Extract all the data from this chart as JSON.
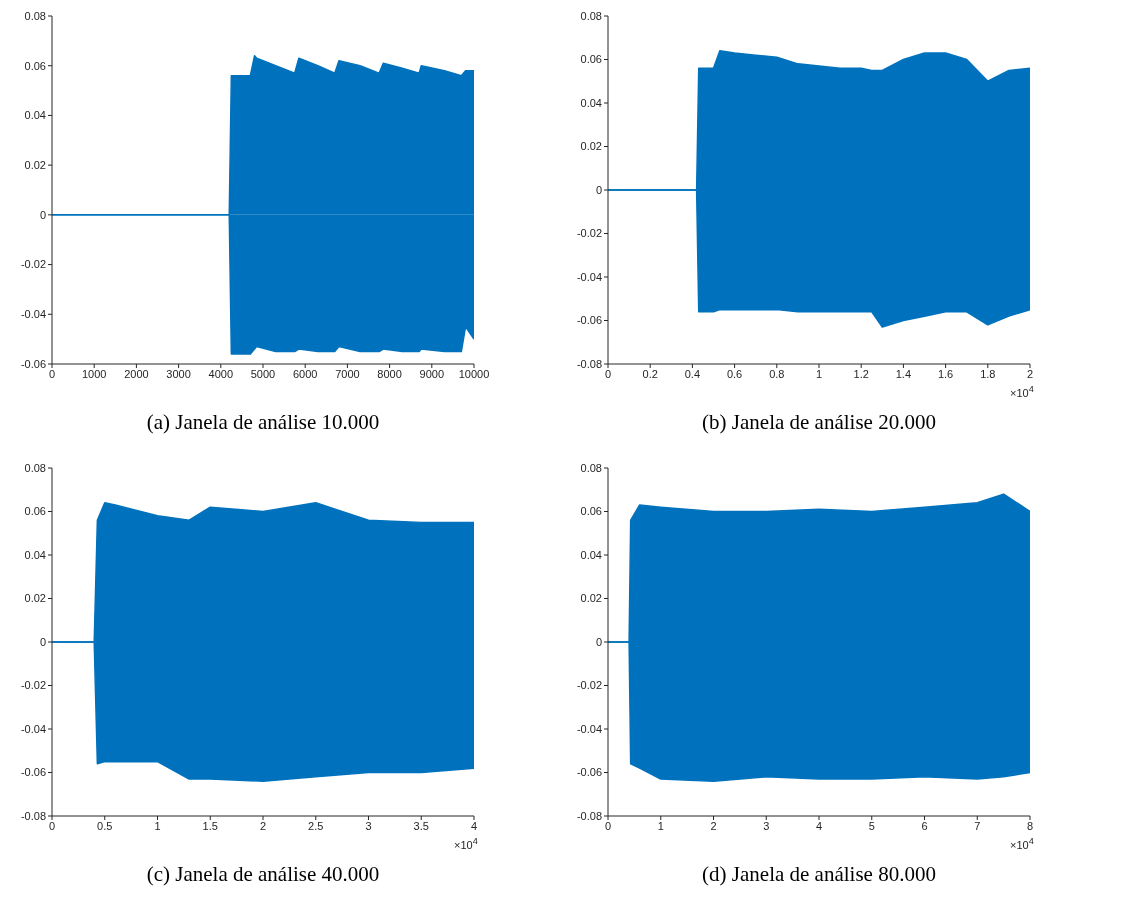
{
  "chart_data": [
    {
      "type": "area",
      "title": "(a) Janela de análise 10.000",
      "x": [
        0,
        4200,
        4250,
        4260,
        4700,
        4800,
        4850,
        5300,
        5750,
        5850,
        6300,
        6700,
        6800,
        7300,
        7750,
        7850,
        8300,
        8700,
        8750,
        9300,
        9700,
        9800,
        10000
      ],
      "series": [
        {
          "color": "#0072bd",
          "values": [
            0,
            0,
            0.056,
            0.056,
            0.056,
            0.064,
            0.063,
            0.06,
            0.057,
            0.063,
            0.06,
            0.057,
            0.062,
            0.06,
            0.057,
            0.061,
            0.059,
            0.057,
            0.06,
            0.058,
            0.056,
            0.058,
            0.058
          ]
        },
        {
          "color": "#0072bd",
          "values": [
            0,
            0,
            -0.056,
            -0.056,
            -0.056,
            -0.054,
            -0.053,
            -0.055,
            -0.055,
            -0.054,
            -0.055,
            -0.055,
            -0.053,
            -0.055,
            -0.055,
            -0.054,
            -0.055,
            -0.055,
            -0.054,
            -0.055,
            -0.055,
            -0.045,
            -0.05
          ]
        }
      ],
      "xlim": [
        0,
        10000
      ],
      "xticks": [
        0,
        1000,
        2000,
        3000,
        4000,
        5000,
        6000,
        7000,
        8000,
        9000,
        10000
      ],
      "ylim": [
        -0.06,
        0.08
      ],
      "yticks": [
        -0.06,
        -0.04,
        -0.02,
        0,
        0.02,
        0.04,
        0.06,
        0.08
      ]
    },
    {
      "type": "area",
      "title": "(b) Janela de análise 20.000",
      "x": [
        0,
        0.42,
        0.43,
        0.5,
        0.53,
        0.6,
        0.7,
        0.8,
        0.9,
        1.0,
        1.1,
        1.2,
        1.25,
        1.3,
        1.4,
        1.5,
        1.6,
        1.7,
        1.8,
        1.9,
        2.0
      ],
      "series": [
        {
          "color": "#0072bd",
          "values": [
            0,
            0,
            0.056,
            0.056,
            0.064,
            0.063,
            0.062,
            0.061,
            0.058,
            0.057,
            0.056,
            0.056,
            0.055,
            0.055,
            0.06,
            0.063,
            0.063,
            0.06,
            0.05,
            0.055,
            0.056
          ]
        },
        {
          "color": "#0072bd",
          "values": [
            0,
            0,
            -0.056,
            -0.056,
            -0.055,
            -0.055,
            -0.055,
            -0.055,
            -0.056,
            -0.056,
            -0.056,
            -0.056,
            -0.056,
            -0.063,
            -0.06,
            -0.058,
            -0.056,
            -0.056,
            -0.062,
            -0.058,
            -0.055
          ]
        }
      ],
      "xlim": [
        0,
        2
      ],
      "xticks": [
        0,
        0.2,
        0.4,
        0.6,
        0.8,
        1,
        1.2,
        1.4,
        1.6,
        1.8,
        2
      ],
      "ylim": [
        -0.08,
        0.08
      ],
      "yticks": [
        -0.08,
        -0.06,
        -0.04,
        -0.02,
        0,
        0.02,
        0.04,
        0.06,
        0.08
      ],
      "annotations": [
        "×10$^{4}$"
      ]
    },
    {
      "type": "area",
      "title": "(c) Janela de análise 40.000",
      "x": [
        0,
        0.4,
        0.43,
        0.5,
        0.6,
        1.0,
        1.3,
        1.5,
        2.0,
        2.5,
        3.0,
        3.5,
        4.0
      ],
      "series": [
        {
          "color": "#0072bd",
          "values": [
            0,
            0,
            0.056,
            0.064,
            0.063,
            0.058,
            0.056,
            0.062,
            0.06,
            0.064,
            0.056,
            0.055,
            0.055
          ]
        },
        {
          "color": "#0072bd",
          "values": [
            0,
            0,
            -0.056,
            -0.055,
            -0.055,
            -0.055,
            -0.063,
            -0.063,
            -0.064,
            -0.062,
            -0.06,
            -0.06,
            -0.058
          ]
        }
      ],
      "xlim": [
        0,
        4
      ],
      "xticks": [
        0,
        0.5,
        1,
        1.5,
        2,
        2.5,
        3,
        3.5,
        4
      ],
      "ylim": [
        -0.08,
        0.08
      ],
      "yticks": [
        -0.08,
        -0.06,
        -0.04,
        -0.02,
        0,
        0.02,
        0.04,
        0.06,
        0.08
      ],
      "annotations": [
        "×10$^{4}$"
      ]
    },
    {
      "type": "area",
      "title": "(d) Janela de análise 80.000",
      "x": [
        0,
        0.4,
        0.43,
        0.6,
        1,
        2,
        3,
        4,
        5,
        6,
        7,
        7.5,
        8
      ],
      "series": [
        {
          "color": "#0072bd",
          "values": [
            0,
            0,
            0.056,
            0.063,
            0.062,
            0.06,
            0.06,
            0.061,
            0.06,
            0.062,
            0.064,
            0.068,
            0.06
          ]
        },
        {
          "color": "#0072bd",
          "values": [
            0,
            0,
            -0.056,
            -0.058,
            -0.063,
            -0.064,
            -0.062,
            -0.063,
            -0.063,
            -0.062,
            -0.063,
            -0.062,
            -0.06
          ]
        }
      ],
      "xlim": [
        0,
        8
      ],
      "xticks": [
        0,
        1,
        2,
        3,
        4,
        5,
        6,
        7,
        8
      ],
      "ylim": [
        -0.08,
        0.08
      ],
      "yticks": [
        -0.08,
        -0.06,
        -0.04,
        -0.02,
        0,
        0.02,
        0.04,
        0.06,
        0.08
      ],
      "annotations": [
        "×10$^{4}$"
      ]
    }
  ]
}
